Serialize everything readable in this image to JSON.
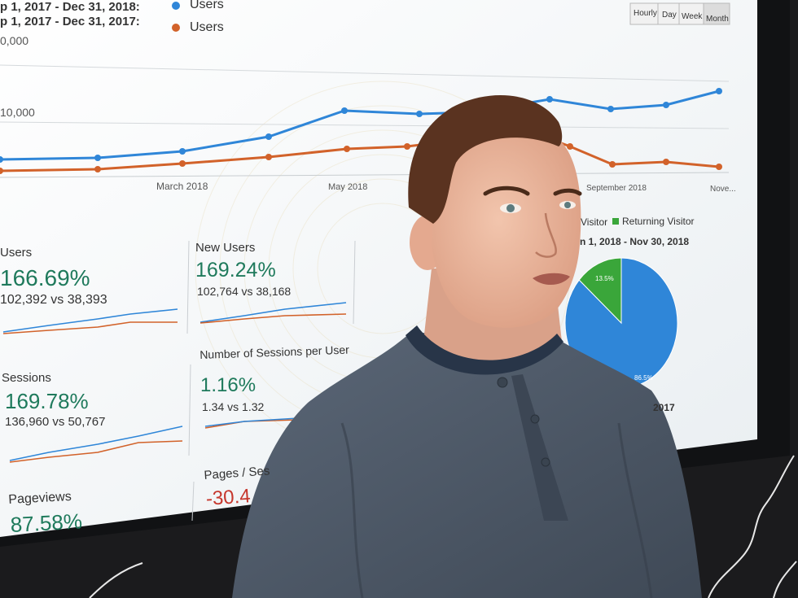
{
  "screen": {
    "legend": {
      "current_range": "p 1, 2017 - Dec 31, 2018:",
      "previous_range": "p 1, 2017 - Dec 31, 2017:",
      "series_current": "Users",
      "series_previous": "Users",
      "color_current": "#2f86d8",
      "color_previous": "#d2622a"
    },
    "interval_buttons": [
      "Hourly",
      "Day",
      "Week",
      "Month"
    ],
    "y_ticks": [
      "0,000",
      "10,000"
    ],
    "x_labels": [
      "March 2018",
      "May 2018",
      "September 2018",
      "Nove..."
    ],
    "metrics": [
      {
        "label": "Users",
        "value": "166.69%",
        "compare": "102,392 vs 38,393"
      },
      {
        "label": "New Users",
        "value": "169.24%",
        "compare": "102,764 vs 38,168"
      },
      {
        "label": "Sessions",
        "value": "169.78%",
        "compare": "136,960 vs 50,767"
      },
      {
        "label": "Number of Sessions per User",
        "value": "1.16%",
        "compare": "1.34 vs 1.32"
      },
      {
        "label": "Pageviews",
        "value": "87.58%"
      },
      {
        "label": "Pages / Ses",
        "value": "-30.4"
      }
    ],
    "pie": {
      "legend_new": "Visitor",
      "legend_returning": "Returning Visitor",
      "date_range": "n 1, 2018 - Nov 30, 2018",
      "year_label": "2017",
      "slices": [
        {
          "name": "New Visitor",
          "percent_label": "86.5%",
          "value": 86.5,
          "color": "#2f86d8"
        },
        {
          "name": "Returning Visitor",
          "percent_label": "13.5%",
          "value": 13.5,
          "color": "#3aa63a"
        }
      ]
    }
  },
  "colors": {
    "shirt": "#4e5a69",
    "skin": "#e9b49b",
    "hair": "#5a3320",
    "screen_bg": "#f5f7f8",
    "wall": "#1b1b1d"
  }
}
